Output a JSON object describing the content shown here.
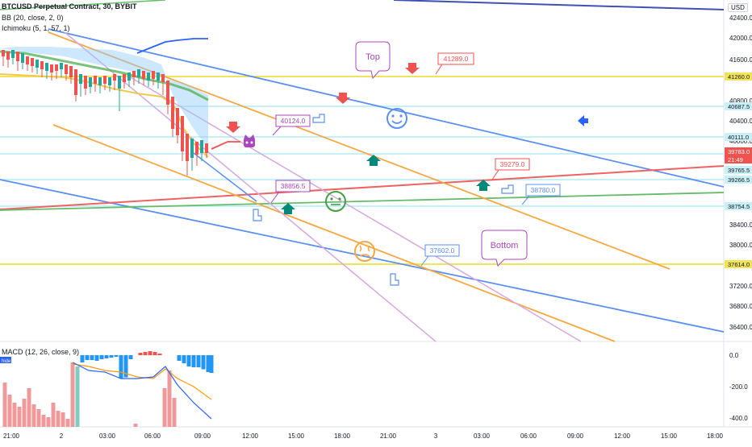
{
  "header": {
    "title": "BTCUSD Perpetual Contract, 30, BYBIT",
    "bb_label": "BB (20, close, 2, 0)",
    "ichimoku_label": "Ichimoku (5, 1, 57, 1)",
    "currency": "USD"
  },
  "macd": {
    "label": "MACD (12, 26, close, 9)",
    "hidden_tag": "hide",
    "ticks": [
      "0.0",
      "-200.0",
      "-400.0"
    ]
  },
  "price_axis": {
    "ticks": [
      "42400.0",
      "42000.0",
      "41600.0",
      "40800.0",
      "40400.0",
      "40000.0",
      "38400.0",
      "38000.0",
      "37200.0",
      "36800.0",
      "36400.0"
    ]
  },
  "price_tags": [
    {
      "text": "41260.0",
      "color": "#f2e45a",
      "text_color": "#131722"
    },
    {
      "text": "40687.5",
      "color": "#c9f0f5",
      "text_color": "#131722"
    },
    {
      "text": "40111.0",
      "color": "#c9f0f5",
      "text_color": "#131722"
    },
    {
      "text": "39783.0",
      "color": "#ef5350",
      "text_color": "#ffffff"
    },
    {
      "text": "21:49",
      "color": "#ef5350",
      "text_color": "#ffffff"
    },
    {
      "text": "39765.5",
      "color": "#c9f0f5",
      "text_color": "#131722"
    },
    {
      "text": "39266.5",
      "color": "#c9f0f5",
      "text_color": "#131722"
    },
    {
      "text": "38754.5",
      "color": "#c9f0f5",
      "text_color": "#131722"
    },
    {
      "text": "37614.0",
      "color": "#f2e45a",
      "text_color": "#131722"
    }
  ],
  "time_axis": {
    "ticks": [
      "21:00",
      "2",
      "03:00",
      "06:00",
      "09:00",
      "12:00",
      "15:00",
      "18:00",
      "21:00",
      "3",
      "03:00",
      "06:00",
      "09:00",
      "12:00",
      "15:00",
      "18:00"
    ]
  },
  "callouts": {
    "top": "Top",
    "bottom": "Bottom",
    "price_labels": [
      "41289.0",
      "40124.0",
      "39279.0",
      "38856.5",
      "38780.0",
      "37602.0"
    ]
  },
  "chart_data": {
    "type": "candlestick",
    "symbol": "BTCUSD",
    "interval": "30",
    "y_range": [
      36200,
      42600
    ],
    "colors": {
      "up": "#26a69a",
      "down": "#ef5350",
      "bb": "#2962ff",
      "ichimoku_lead": "#4caf50",
      "ichimoku_base": "#f2c94c",
      "cloud": "#90caf9"
    },
    "horizontal_levels": [
      41260,
      40687.5,
      40111,
      39765.5,
      39266.5,
      38754.5,
      37614
    ],
    "annotated_prices": [
      41289,
      40124,
      39279,
      38856.5,
      38780,
      37602
    ],
    "last_price": 39783,
    "macd": {
      "zero_line": 0,
      "range": [
        -450,
        50
      ]
    }
  }
}
